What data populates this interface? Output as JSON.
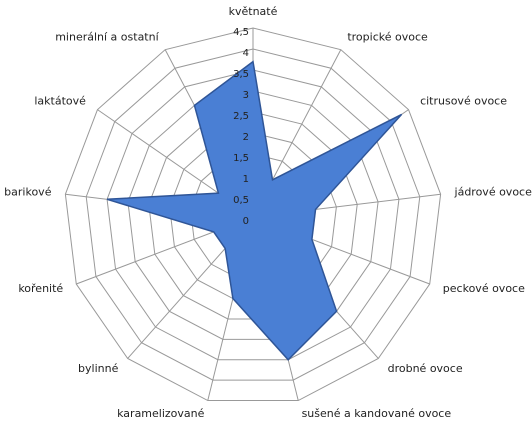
{
  "chart_data": {
    "type": "radar",
    "categories": [
      "květnaté",
      "tropické ovoce",
      "citrusové ovoce",
      "jádrové ovoce",
      "peckové ovoce",
      "drobné ovoce",
      "sušené a kandované  ovoce",
      "karamelizované",
      "bylinné",
      "kořenité",
      "barikové",
      "laktátové",
      "minerální a ostatní"
    ],
    "values": [
      3.7,
      1,
      4.3,
      1.5,
      1.5,
      3,
      3.5,
      2,
      1,
      1,
      3.5,
      1,
      3
    ],
    "color": "#4a7fd4",
    "rlim": [
      0,
      4.5
    ],
    "rticks": [
      0,
      {
        "value": 0.5,
        "label": "0,5"
      },
      1,
      {
        "value": 1.5,
        "label": "1,5"
      },
      2,
      {
        "value": 2.5,
        "label": "2,5"
      },
      3,
      {
        "value": 3.5,
        "label": "3,5"
      },
      4,
      {
        "value": 4.5,
        "label": "4,5"
      }
    ],
    "grid": true
  }
}
